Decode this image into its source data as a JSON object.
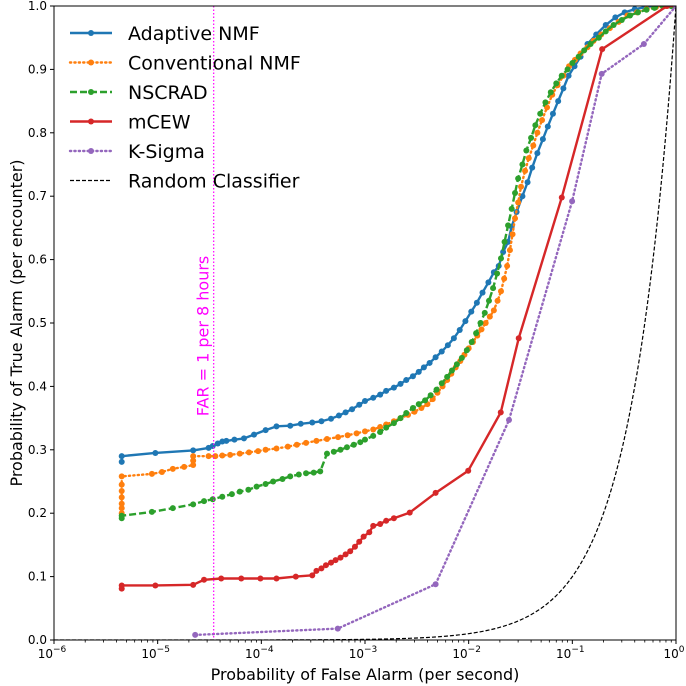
{
  "chart_data": {
    "type": "line",
    "x_scale": "log",
    "xlabel": "Probability of False Alarm (per second)",
    "ylabel": "Probability of True Alarm (per encounter)",
    "xlim": [
      1e-06,
      1
    ],
    "ylim": [
      0,
      1
    ],
    "x_ticks": [
      {
        "value": 1e-06,
        "base": "10",
        "exp": "−6"
      },
      {
        "value": 1e-05,
        "base": "10",
        "exp": "−5"
      },
      {
        "value": 0.0001,
        "base": "10",
        "exp": "−4"
      },
      {
        "value": 0.001,
        "base": "10",
        "exp": "−3"
      },
      {
        "value": 0.01,
        "base": "10",
        "exp": "−2"
      },
      {
        "value": 0.1,
        "base": "10",
        "exp": "−1"
      },
      {
        "value": 1,
        "base": "10",
        "exp": "0"
      }
    ],
    "y_ticks": [
      {
        "value": 0.0,
        "label": "0.0"
      },
      {
        "value": 0.1,
        "label": "0.1"
      },
      {
        "value": 0.2,
        "label": "0.2"
      },
      {
        "value": 0.3,
        "label": "0.3"
      },
      {
        "value": 0.4,
        "label": "0.4"
      },
      {
        "value": 0.5,
        "label": "0.5"
      },
      {
        "value": 0.6,
        "label": "0.6"
      },
      {
        "value": 0.7,
        "label": "0.7"
      },
      {
        "value": 0.8,
        "label": "0.8"
      },
      {
        "value": 0.9,
        "label": "0.9"
      },
      {
        "value": 1.0,
        "label": "1.0"
      }
    ],
    "legend_position": "top-left",
    "annotation": {
      "text": "FAR = 1 per 8 hours",
      "x": 3.47e-05,
      "color": "#ff00ff"
    },
    "series": [
      {
        "name": "Adaptive NMF",
        "color": "#1f77b4",
        "dash": "solid",
        "x": [
          4.5e-06,
          4.5e-06,
          9.5e-06,
          2.2e-05,
          3.1e-05,
          3.4e-05,
          3.8e-05,
          4.2e-05,
          4.6e-05,
          5.5e-05,
          6.8e-05,
          8.5e-05,
          0.00011,
          0.00014,
          0.00019,
          0.00024,
          0.00031,
          0.00038,
          0.00047,
          0.00056,
          0.00065,
          0.00075,
          0.00088,
          0.001,
          0.0012,
          0.0014,
          0.0016,
          0.0019,
          0.0022,
          0.0025,
          0.0029,
          0.0033,
          0.0037,
          0.0042,
          0.0048,
          0.0055,
          0.0063,
          0.0072,
          0.0082,
          0.0093,
          0.0106,
          0.012,
          0.0136,
          0.0155,
          0.0175,
          0.0195,
          0.0215,
          0.024,
          0.026,
          0.029,
          0.033,
          0.037,
          0.041,
          0.046,
          0.052,
          0.058,
          0.065,
          0.073,
          0.082,
          0.092,
          0.105,
          0.12,
          0.14,
          0.17,
          0.21,
          0.26,
          0.32,
          0.4,
          0.5,
          0.6,
          0.75,
          0.9,
          1.0
        ],
        "y": [
          0.281,
          0.29,
          0.295,
          0.299,
          0.303,
          0.306,
          0.31,
          0.313,
          0.314,
          0.316,
          0.318,
          0.324,
          0.331,
          0.337,
          0.338,
          0.341,
          0.343,
          0.345,
          0.349,
          0.354,
          0.359,
          0.364,
          0.371,
          0.377,
          0.382,
          0.387,
          0.393,
          0.398,
          0.404,
          0.41,
          0.416,
          0.423,
          0.43,
          0.437,
          0.446,
          0.455,
          0.465,
          0.476,
          0.489,
          0.503,
          0.518,
          0.532,
          0.548,
          0.564,
          0.58,
          0.59,
          0.612,
          0.628,
          0.652,
          0.675,
          0.7,
          0.722,
          0.745,
          0.768,
          0.79,
          0.81,
          0.83,
          0.85,
          0.87,
          0.89,
          0.905,
          0.92,
          0.94,
          0.955,
          0.97,
          0.982,
          0.99,
          0.995,
          0.998,
          1.0,
          1.0,
          1.0,
          1.0
        ]
      },
      {
        "name": "Conventional NMF",
        "color": "#ff7f0e",
        "dash": "dotted",
        "x": [
          4.5e-06,
          4.5e-06,
          4.5e-06,
          4.5e-06,
          4.5e-06,
          4.5e-06,
          4.5e-06,
          8.8e-06,
          1.1e-05,
          1.4e-05,
          1.8e-05,
          2.2e-05,
          2.2e-05,
          2.2e-05,
          3.1e-05,
          3.6e-05,
          4.2e-05,
          5e-05,
          6.2e-05,
          7.6e-05,
          9.3e-05,
          0.00011,
          0.00014,
          0.00018,
          0.00022,
          0.00027,
          0.00034,
          0.00043,
          0.00055,
          0.00068,
          0.00083,
          0.001,
          0.0012,
          0.0014,
          0.0016,
          0.0019,
          0.0022,
          0.0026,
          0.003,
          0.0035,
          0.004,
          0.0045,
          0.005,
          0.0056,
          0.0062,
          0.0068,
          0.0075,
          0.0083,
          0.0091,
          0.01,
          0.011,
          0.0121,
          0.0133,
          0.0146,
          0.016,
          0.0175,
          0.019,
          0.0205,
          0.022,
          0.0235,
          0.025,
          0.0265,
          0.028,
          0.03,
          0.032,
          0.035,
          0.038,
          0.042,
          0.046,
          0.051,
          0.057,
          0.064,
          0.072,
          0.082,
          0.093,
          0.106,
          0.12,
          0.14,
          0.16,
          0.19,
          0.23,
          0.28,
          0.34,
          0.42,
          0.52,
          0.64,
          0.8,
          1.0
        ],
        "y": [
          0.2,
          0.208,
          0.215,
          0.225,
          0.235,
          0.245,
          0.258,
          0.262,
          0.265,
          0.27,
          0.273,
          0.276,
          0.283,
          0.29,
          0.29,
          0.29,
          0.291,
          0.292,
          0.294,
          0.296,
          0.298,
          0.3,
          0.302,
          0.305,
          0.308,
          0.311,
          0.314,
          0.317,
          0.32,
          0.323,
          0.326,
          0.329,
          0.332,
          0.336,
          0.34,
          0.345,
          0.35,
          0.355,
          0.36,
          0.366,
          0.372,
          0.38,
          0.39,
          0.4,
          0.41,
          0.42,
          0.43,
          0.44,
          0.45,
          0.46,
          0.47,
          0.48,
          0.49,
          0.5,
          0.51,
          0.52,
          0.535,
          0.55,
          0.57,
          0.59,
          0.615,
          0.64,
          0.665,
          0.69,
          0.715,
          0.74,
          0.76,
          0.78,
          0.8,
          0.82,
          0.84,
          0.86,
          0.875,
          0.89,
          0.905,
          0.915,
          0.925,
          0.935,
          0.945,
          0.955,
          0.965,
          0.975,
          0.985,
          0.99,
          0.995,
          0.998,
          1.0,
          1.0
        ]
      },
      {
        "name": "NSCRAD",
        "color": "#2ca02c",
        "dash": "dashed",
        "x": [
          4.5e-06,
          4.5e-06,
          8.8e-06,
          1.4e-05,
          2.2e-05,
          2.8e-05,
          3.4e-05,
          4.2e-05,
          5.2e-05,
          6.2e-05,
          7.5e-05,
          9e-05,
          0.00011,
          0.00013,
          0.00016,
          0.00019,
          0.00023,
          0.00027,
          0.00032,
          0.00037,
          0.00043,
          0.0005,
          0.00058,
          0.00067,
          0.00078,
          0.0009,
          0.001,
          0.0012,
          0.0014,
          0.0016,
          0.0019,
          0.0022,
          0.0025,
          0.0029,
          0.0033,
          0.0038,
          0.0043,
          0.0049,
          0.0055,
          0.0062,
          0.0069,
          0.0077,
          0.0086,
          0.0096,
          0.0107,
          0.0118,
          0.013,
          0.0143,
          0.0157,
          0.0172,
          0.0188,
          0.0205,
          0.0222,
          0.024,
          0.026,
          0.028,
          0.03,
          0.033,
          0.036,
          0.04,
          0.044,
          0.049,
          0.055,
          0.062,
          0.07,
          0.079,
          0.09,
          0.1,
          0.115,
          0.13,
          0.15,
          0.18,
          0.21,
          0.25,
          0.3,
          0.36,
          0.43,
          0.52,
          0.62,
          0.75,
          0.9,
          1.0
        ],
        "y": [
          0.192,
          0.196,
          0.202,
          0.208,
          0.214,
          0.219,
          0.222,
          0.226,
          0.23,
          0.234,
          0.237,
          0.242,
          0.246,
          0.25,
          0.254,
          0.258,
          0.261,
          0.263,
          0.264,
          0.266,
          0.294,
          0.297,
          0.3,
          0.304,
          0.308,
          0.312,
          0.316,
          0.322,
          0.328,
          0.335,
          0.342,
          0.35,
          0.358,
          0.366,
          0.372,
          0.378,
          0.386,
          0.395,
          0.405,
          0.415,
          0.425,
          0.435,
          0.445,
          0.457,
          0.47,
          0.484,
          0.5,
          0.516,
          0.535,
          0.555,
          0.578,
          0.602,
          0.628,
          0.654,
          0.68,
          0.705,
          0.728,
          0.75,
          0.772,
          0.792,
          0.812,
          0.83,
          0.848,
          0.864,
          0.878,
          0.89,
          0.9,
          0.91,
          0.92,
          0.93,
          0.94,
          0.95,
          0.96,
          0.97,
          0.978,
          0.985,
          0.99,
          0.994,
          0.997,
          0.999,
          1.0,
          1.0
        ]
      },
      {
        "name": "mCEW",
        "color": "#d62728",
        "dash": "solid",
        "x": [
          4.5e-06,
          4.5e-06,
          9.5e-06,
          2.2e-05,
          2.8e-05,
          4.1e-05,
          6.4e-05,
          9.8e-05,
          0.00014,
          0.000215,
          0.00031,
          0.00034,
          0.00038,
          0.00042,
          0.00047,
          0.00052,
          0.00058,
          0.00065,
          0.00072,
          0.0008,
          0.00088,
          0.00097,
          0.0011,
          0.0012,
          0.0014,
          0.0016,
          0.0019,
          0.0027,
          0.0048,
          0.0099,
          0.0204,
          0.0304,
          0.0791,
          0.194,
          0.82,
          1.0
        ],
        "y": [
          0.081,
          0.086,
          0.086,
          0.087,
          0.095,
          0.097,
          0.097,
          0.097,
          0.097,
          0.1,
          0.102,
          0.109,
          0.113,
          0.118,
          0.122,
          0.126,
          0.13,
          0.135,
          0.14,
          0.147,
          0.155,
          0.163,
          0.17,
          0.18,
          0.183,
          0.188,
          0.192,
          0.201,
          0.232,
          0.267,
          0.359,
          0.476,
          0.698,
          0.932,
          1.0,
          1.0
        ]
      },
      {
        "name": "K-Sigma",
        "color": "#9467bd",
        "dash": "dotted",
        "x": [
          2.3e-05,
          0.000546,
          0.0048,
          0.0245,
          0.0995,
          0.192,
          0.49,
          1.0
        ],
        "y": [
          0.008,
          0.018,
          0.088,
          0.347,
          0.692,
          0.893,
          0.94,
          1.0
        ]
      },
      {
        "name": "Random Classifier",
        "color": "#000000",
        "dash": "thin-dashed",
        "markers": false,
        "function": "y = x"
      }
    ]
  }
}
